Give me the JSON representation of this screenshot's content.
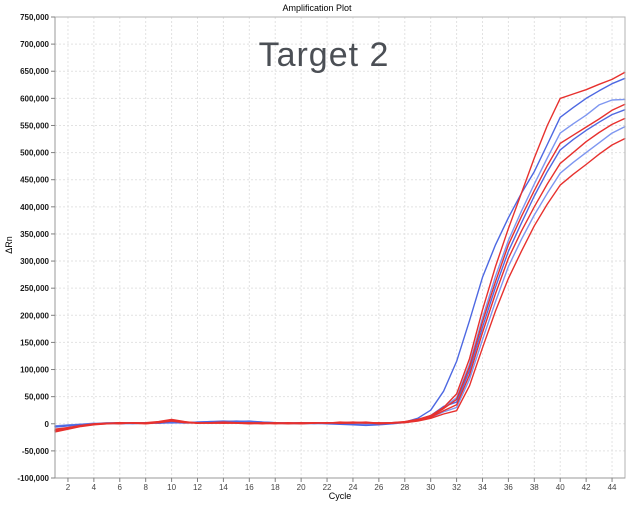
{
  "header": {
    "title": "Amplification Plot"
  },
  "chart_data": {
    "type": "line",
    "title": "Amplification Plot",
    "annotation": "Target 2",
    "xlabel": "Cycle",
    "ylabel": "ΔRn",
    "xlim": [
      1,
      45
    ],
    "ylim": [
      -100000,
      750000
    ],
    "y_tick_step": 50000,
    "x_ticks": [
      2,
      4,
      6,
      8,
      10,
      12,
      14,
      16,
      18,
      20,
      22,
      24,
      26,
      28,
      30,
      32,
      34,
      36,
      38,
      40,
      42,
      44
    ],
    "grid": true,
    "legend": "none",
    "grid_color": "#e2e2e2",
    "border_color": "#b3b3b3",
    "x": [
      1,
      2,
      3,
      4,
      5,
      6,
      7,
      8,
      9,
      10,
      11,
      12,
      13,
      14,
      15,
      16,
      17,
      18,
      19,
      20,
      21,
      22,
      23,
      24,
      25,
      26,
      27,
      28,
      29,
      30,
      31,
      32,
      33,
      34,
      35,
      36,
      37,
      38,
      39,
      40,
      41,
      42,
      43,
      44,
      45
    ],
    "series": [
      {
        "name": "blue-curve-4",
        "color": "#7e96f0",
        "values": [
          -4000,
          -3000,
          -1000,
          0,
          2000,
          1000,
          0,
          1000,
          2000,
          1000,
          2000,
          3000,
          4000,
          3000,
          4000,
          3000,
          2000,
          1000,
          0,
          1000,
          2000,
          1000,
          0,
          1000,
          2000,
          1000,
          0,
          2000,
          6000,
          12000,
          22000,
          30000,
          82000,
          155000,
          225000,
          290000,
          340000,
          385000,
          425000,
          462000,
          482000,
          500000,
          518000,
          536000,
          548000
        ]
      },
      {
        "name": "blue-curve-3",
        "color": "#5069e1",
        "values": [
          -6000,
          -4000,
          -2000,
          0,
          1000,
          0,
          1000,
          2000,
          1000,
          2000,
          3000,
          2000,
          3000,
          4000,
          5000,
          4000,
          3000,
          2000,
          1000,
          0,
          1000,
          2000,
          1000,
          0,
          -1000,
          0,
          1000,
          3000,
          7000,
          15000,
          32000,
          40000,
          98000,
          178000,
          252000,
          318000,
          370000,
          420000,
          465000,
          505000,
          524000,
          541000,
          556000,
          570000,
          579000
        ]
      },
      {
        "name": "blue-curve-2",
        "color": "#7e96f0",
        "values": [
          -4000,
          -2000,
          -1000,
          1000,
          0,
          1000,
          2000,
          1000,
          2000,
          2000,
          1000,
          2000,
          3000,
          4000,
          3000,
          4000,
          2000,
          1000,
          2000,
          1000,
          0,
          1000,
          2000,
          1000,
          0,
          1000,
          2000,
          3000,
          7000,
          14000,
          30000,
          48000,
          110000,
          195000,
          272000,
          338000,
          392000,
          442000,
          490000,
          536000,
          553000,
          569000,
          588000,
          597000,
          598000
        ]
      },
      {
        "name": "blue-curve-1",
        "color": "#4d68e2",
        "values": [
          -5000,
          -3000,
          -1000,
          0,
          1000,
          2000,
          1000,
          2000,
          1000,
          3000,
          2000,
          3000,
          4000,
          5000,
          4000,
          5000,
          3000,
          2000,
          1000,
          2000,
          1000,
          0,
          -1000,
          -2000,
          -3000,
          -2000,
          0,
          3000,
          10000,
          25000,
          60000,
          115000,
          190000,
          270000,
          330000,
          380000,
          425000,
          465000,
          515000,
          565000,
          583000,
          600000,
          614000,
          627000,
          637000
        ]
      },
      {
        "name": "red-curve-4",
        "color": "#e7312e",
        "values": [
          -10000,
          -7000,
          -3000,
          0,
          1000,
          2000,
          1000,
          0,
          2000,
          5000,
          2000,
          1000,
          2000,
          1000,
          1000,
          0,
          1000,
          2000,
          1000,
          0,
          1000,
          2000,
          1000,
          1000,
          2000,
          0,
          1000,
          2000,
          5000,
          10000,
          18000,
          24000,
          70000,
          140000,
          208000,
          268000,
          318000,
          365000,
          405000,
          440000,
          460000,
          478000,
          497000,
          514000,
          526000
        ]
      },
      {
        "name": "red-curve-3",
        "color": "#e7312e",
        "values": [
          -13000,
          -9000,
          -4000,
          -1000,
          1000,
          0,
          2000,
          1000,
          2000,
          7000,
          3000,
          2000,
          1000,
          1000,
          2000,
          1000,
          0,
          1000,
          2000,
          1000,
          2000,
          1000,
          3000,
          2000,
          1000,
          2000,
          1000,
          3000,
          6000,
          12000,
          24000,
          35000,
          90000,
          168000,
          240000,
          305000,
          355000,
          400000,
          442000,
          480000,
          500000,
          520000,
          537000,
          552000,
          563000
        ]
      },
      {
        "name": "red-curve-2",
        "color": "#e7312e",
        "values": [
          -15000,
          -10000,
          -5000,
          -2000,
          0,
          1000,
          2000,
          1000,
          3000,
          6000,
          3000,
          1000,
          1000,
          2000,
          1000,
          2000,
          1000,
          0,
          1000,
          2000,
          1000,
          2000,
          1000,
          2000,
          3000,
          1000,
          2000,
          3000,
          6000,
          13000,
          28000,
          45000,
          105000,
          188000,
          262000,
          330000,
          382000,
          430000,
          476000,
          517000,
          532000,
          547000,
          562000,
          578000,
          589000
        ]
      },
      {
        "name": "red-curve-1",
        "color": "#e7312e",
        "values": [
          -12000,
          -8000,
          -4000,
          -1000,
          0,
          2000,
          1000,
          2000,
          4000,
          8000,
          4000,
          1000,
          2000,
          3000,
          2000,
          1000,
          2000,
          1000,
          0,
          1000,
          2000,
          1000,
          2000,
          3000,
          2000,
          1000,
          2000,
          4000,
          8000,
          15000,
          30000,
          55000,
          120000,
          210000,
          290000,
          360000,
          425000,
          490000,
          550000,
          600000,
          608000,
          616000,
          626000,
          635000,
          648000
        ]
      }
    ]
  }
}
